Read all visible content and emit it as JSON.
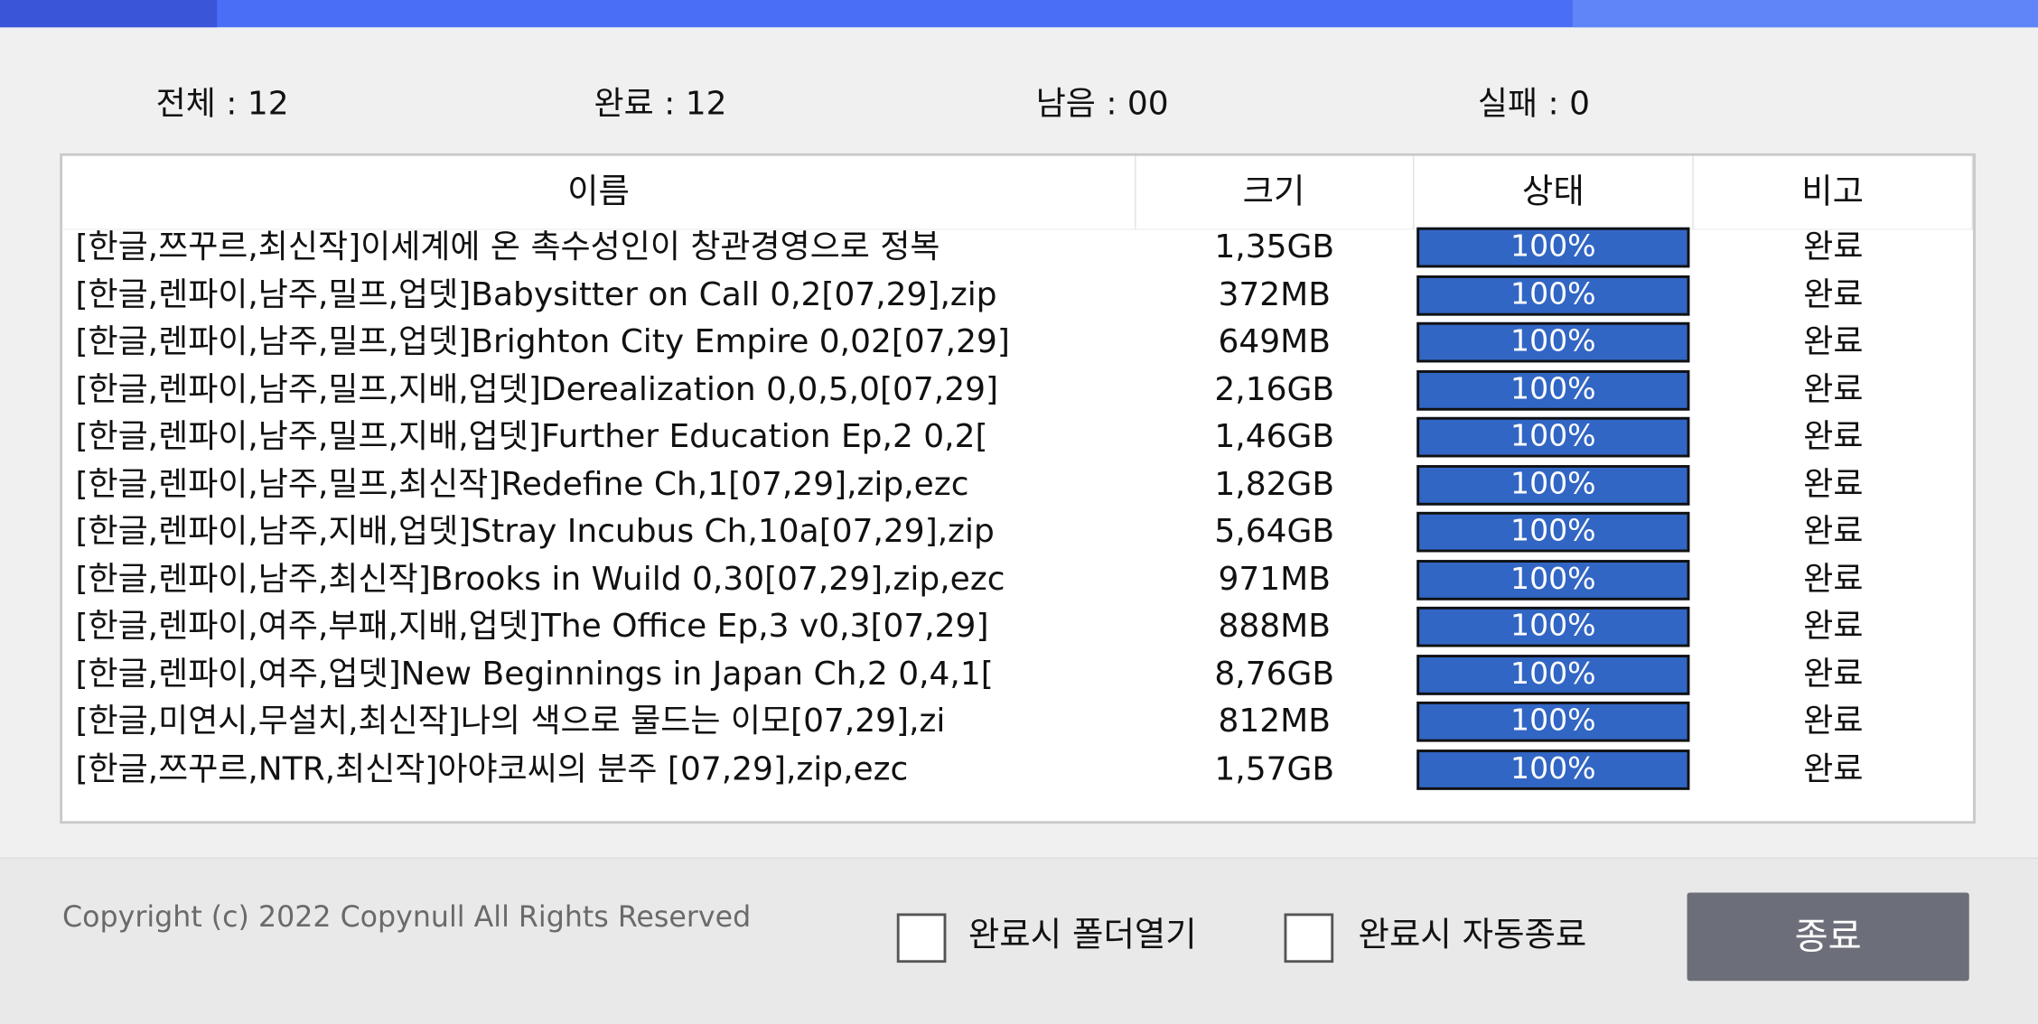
{
  "stats": [
    "전체 : 12",
    "완료 : 12",
    "남음 : 00",
    "실패 : 0"
  ],
  "table": {
    "headers": [
      "이름",
      "크기",
      "상태",
      "비고"
    ],
    "rows": [
      [
        "[한글,쯔꾸르,최신작]이세계에 온 촉수성인이 창관경영으로 정복",
        "1,35GB",
        "100%",
        "완료"
      ],
      [
        "[한글,렌파이,남주,밀프,업뎃]Babysitter on Call 0,2[07,29],zip",
        "372MB",
        "100%",
        "완료"
      ],
      [
        "[한글,렌파이,남주,밀프,업뎃]Brighton City Empire 0,02[07,29]",
        "649MB",
        "100%",
        "완료"
      ],
      [
        "[한글,렌파이,남주,밀프,지배,업뎃]Derealization 0,0,5,0[07,29]",
        "2,16GB",
        "100%",
        "완료"
      ],
      [
        "[한글,렌파이,남주,밀프,지배,업뎃]Further Education Ep,2 0,2[",
        "1,46GB",
        "100%",
        "완료"
      ],
      [
        "[한글,렌파이,남주,밀프,최신작]Redefine Ch,1[07,29],zip,ezc",
        "1,82GB",
        "100%",
        "완료"
      ],
      [
        "[한글,렌파이,남주,지배,업뎃]Stray Incubus Ch,10a[07,29],zip",
        "5,64GB",
        "100%",
        "완료"
      ],
      [
        "[한글,렌파이,남주,최신작]Brooks in Wuild 0,30[07,29],zip,ezc",
        "971MB",
        "100%",
        "완료"
      ],
      [
        "[한글,렌파이,여주,부패,지배,업뎃]The Office Ep,3 v0,3[07,29]",
        "888MB",
        "100%",
        "완료"
      ],
      [
        "[한글,렌파이,여주,업뎃]New Beginnings in Japan Ch,2 0,4,1[",
        "8,76GB",
        "100%",
        "완료"
      ],
      [
        "[한글,미연시,무설치,최신작]나의 색으로 물드는 이모[07,29],zi",
        "812MB",
        "100%",
        "완료"
      ],
      [
        "[한글,쯔꾸르,NTR,최신작]아야코씨의 분주 [07,29],zip,ezc",
        "1,57GB",
        "100%",
        "완료"
      ]
    ]
  },
  "footer": {
    "copyright": "Copyright (c) 2022 Copynull All Rights Reserved",
    "checkboxes": [
      "완료시 폴더열기",
      "완료시 자동종료"
    ],
    "button": "종료"
  }
}
